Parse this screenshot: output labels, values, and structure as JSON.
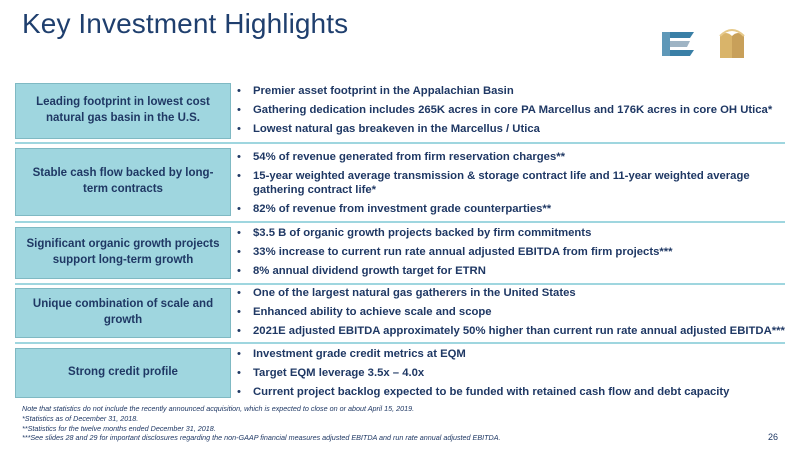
{
  "title": "Key Investment Highlights",
  "logos": [
    {
      "name": "equitrans-e-logo",
      "colors": [
        "#3a7fa6",
        "#9fb4c4"
      ]
    },
    {
      "name": "eqm-m-logo",
      "colors": [
        "#d9b46a",
        "#c8a05a"
      ]
    }
  ],
  "highlights": [
    {
      "label": "Leading footprint in lowest cost natural gas basin in the U.S.",
      "bullets": [
        "Premier asset footprint in the Appalachian Basin",
        "Gathering dedication includes 265K acres in core PA Marcellus and 176K acres in core OH Utica*",
        "Lowest natural gas breakeven in the Marcellus / Utica"
      ]
    },
    {
      "label": "Stable cash flow backed by long-term contracts",
      "bullets": [
        "54% of revenue generated from firm reservation charges**",
        "15-year weighted average transmission & storage contract life and 11-year weighted average gathering contract life*",
        "82% of revenue from investment grade counterparties**"
      ]
    },
    {
      "label": "Significant organic growth projects support long-term growth",
      "bullets": [
        "$3.5 B of organic growth projects backed by firm commitments",
        "33% increase to current run rate annual adjusted EBITDA from firm projects***",
        "8% annual dividend growth target for ETRN"
      ]
    },
    {
      "label": "Unique combination of scale and growth",
      "bullets": [
        "One of the largest natural gas gatherers in the United States",
        "Enhanced ability to achieve scale and scope",
        "2021E adjusted EBITDA approximately 50% higher than current run rate annual adjusted EBITDA***"
      ]
    },
    {
      "label": "Strong credit profile",
      "bullets": [
        "Investment grade credit metrics at EQM",
        "Target EQM leverage 3.5x – 4.0x",
        "Current project backlog expected to be funded with retained cash flow and debt capacity"
      ]
    }
  ],
  "notes": [
    "Note that statistics do not include the recently announced acquisition, which is expected to close on or about April 15, 2019.",
    "*Statistics as of December 31, 2018.",
    "**Statistics for the twelve months ended December 31, 2018.",
    "***See slides 28 and 29 for important disclosures regarding the non-GAAP financial measures adjusted EBITDA and run rate annual adjusted EBITDA."
  ],
  "page_number": "26"
}
